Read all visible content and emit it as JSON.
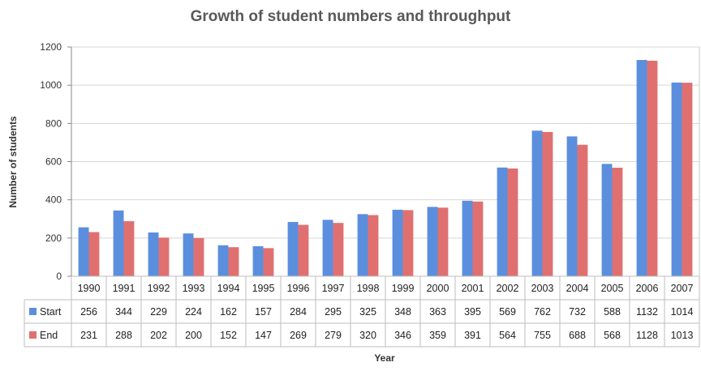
{
  "chart_data": {
    "type": "bar",
    "title": "Growth of student numbers and throughput",
    "xlabel": "Year",
    "ylabel": "Number of students",
    "ylim": [
      0,
      1200
    ],
    "yticks": [
      0,
      200,
      400,
      600,
      800,
      1000,
      1200
    ],
    "grid": true,
    "legend": "data-table",
    "categories": [
      "1990",
      "1991",
      "1992",
      "1993",
      "1994",
      "1995",
      "1996",
      "1997",
      "1998",
      "1999",
      "2000",
      "2001",
      "2002",
      "2003",
      "2004",
      "2005",
      "2006",
      "2007"
    ],
    "series": [
      {
        "name": "Start",
        "color": "#5b8fde",
        "values": [
          256,
          344,
          229,
          224,
          162,
          157,
          284,
          295,
          325,
          348,
          363,
          395,
          569,
          762,
          732,
          588,
          1132,
          1014
        ]
      },
      {
        "name": "End",
        "color": "#e07070",
        "values": [
          231,
          288,
          202,
          200,
          152,
          147,
          269,
          279,
          320,
          346,
          359,
          391,
          564,
          755,
          688,
          568,
          1128,
          1013
        ]
      }
    ]
  }
}
